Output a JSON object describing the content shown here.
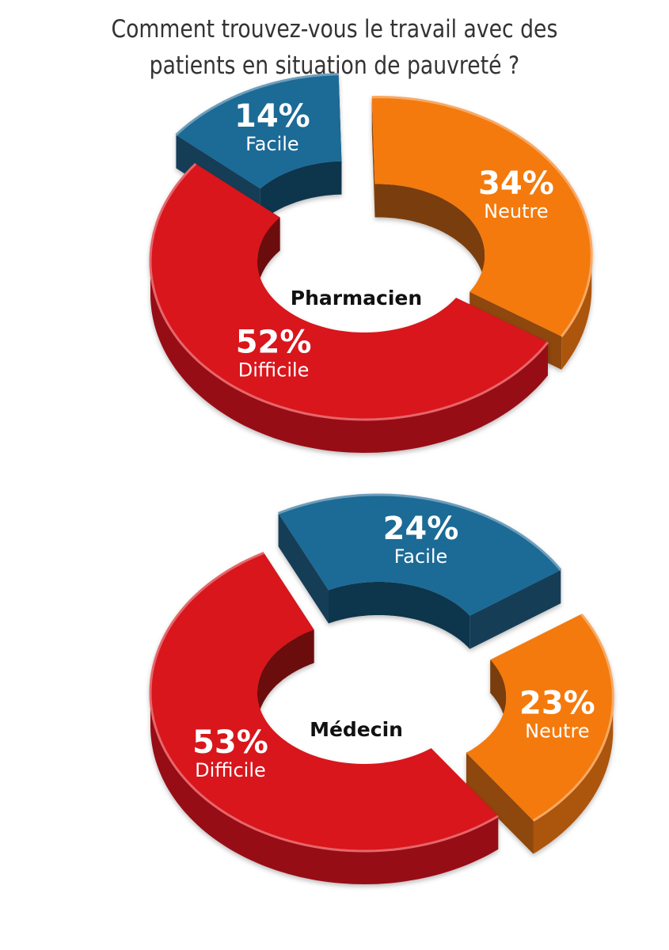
{
  "title_lines": [
    "Comment trouvez-vous le travail avec des",
    "patients en situation de pauvreté ?"
  ],
  "colors": {
    "facile": "#1f6a96",
    "neutre": "#f47a10",
    "difficile": "#d8141b",
    "label_text": "#ffffff"
  },
  "chart_data": [
    {
      "type": "pie",
      "center_label": "Pharmacien",
      "slices": [
        {
          "label": "Facile",
          "value": 14,
          "value_label": "14%",
          "color": "#1f6a96"
        },
        {
          "label": "Neutre",
          "value": 34,
          "value_label": "34%",
          "color": "#f47a10"
        },
        {
          "label": "Difficile",
          "value": 52,
          "value_label": "52%",
          "color": "#d8141b"
        }
      ]
    },
    {
      "type": "pie",
      "center_label": "Médecin",
      "slices": [
        {
          "label": "Facile",
          "value": 24,
          "value_label": "24%",
          "color": "#1f6a96"
        },
        {
          "label": "Neutre",
          "value": 23,
          "value_label": "23%",
          "color": "#f47a10"
        },
        {
          "label": "Difficile",
          "value": 53,
          "value_label": "53%",
          "color": "#d8141b"
        }
      ]
    }
  ]
}
